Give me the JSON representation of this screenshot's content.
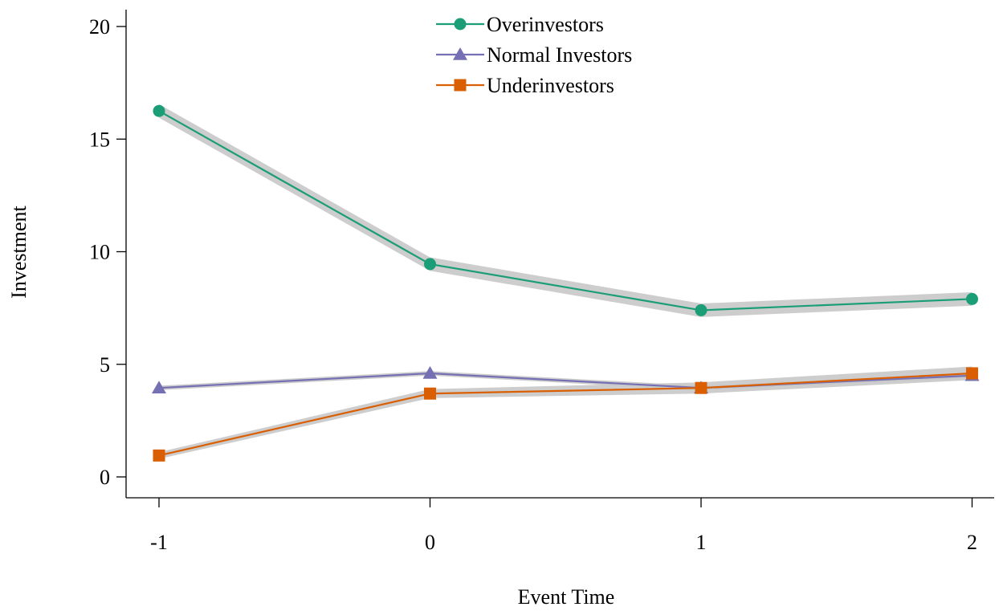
{
  "chart_data": {
    "type": "line",
    "xlabel": "Event Time",
    "ylabel": "Investment",
    "x": [
      -1,
      0,
      1,
      2
    ],
    "x_tick_labels": [
      "-1",
      "0",
      "1",
      "2"
    ],
    "y_ticks": [
      0,
      5,
      10,
      15,
      20
    ],
    "y_tick_labels": [
      "0",
      "5",
      "10",
      "15",
      "20"
    ],
    "xlim": [
      -1.1,
      2.1
    ],
    "ylim": [
      -0.5,
      20.7
    ],
    "grid": false,
    "legend_position": "top-center",
    "confidence_band_color": "#c8c8c8",
    "series": [
      {
        "name": "Overinvestors",
        "values": [
          16.25,
          9.45,
          7.4,
          7.9
        ],
        "ci_halfwidth": [
          0.3,
          0.3,
          0.3,
          0.3
        ],
        "color": "#1b9e77",
        "marker": "circle"
      },
      {
        "name": "Normal Investors",
        "values": [
          3.95,
          4.6,
          3.95,
          4.5
        ],
        "ci_halfwidth": [
          0.1,
          0.1,
          0.1,
          0.1
        ],
        "color": "#7570b3",
        "marker": "triangle"
      },
      {
        "name": "Underinvestors",
        "values": [
          0.95,
          3.7,
          3.95,
          4.6
        ],
        "ci_halfwidth": [
          0.15,
          0.2,
          0.25,
          0.3
        ],
        "color": "#d95f02",
        "marker": "square"
      }
    ]
  }
}
